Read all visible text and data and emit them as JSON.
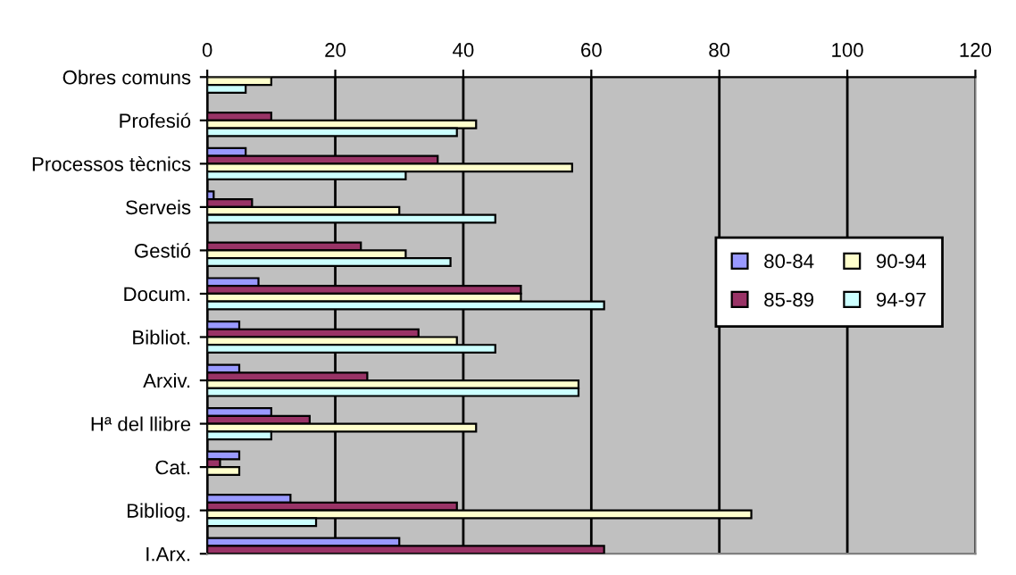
{
  "chart_data": {
    "type": "bar",
    "orientation": "horizontal",
    "categories": [
      "Obres comuns",
      "Profesió",
      "Processos tècnics",
      "Serveis",
      "Gestió",
      "Docum.",
      "Bibliot.",
      "Arxiv.",
      "Hª del llibre",
      "Cat.",
      "Bibliog.",
      "I.Arx."
    ],
    "series": [
      {
        "name": "80-84",
        "color": "#9999ff",
        "values": [
          null,
          null,
          6,
          1,
          null,
          8,
          5,
          5,
          10,
          5,
          13,
          30
        ]
      },
      {
        "name": "85-89",
        "color": "#993366",
        "values": [
          null,
          10,
          36,
          7,
          24,
          49,
          33,
          25,
          16,
          2,
          39,
          62
        ]
      },
      {
        "name": "90-94",
        "color": "#ffffcc",
        "values": [
          10,
          42,
          57,
          30,
          31,
          49,
          39,
          58,
          42,
          5,
          85,
          null
        ]
      },
      {
        "name": "94-97",
        "color": "#ccffff",
        "values": [
          6,
          39,
          31,
          45,
          38,
          62,
          45,
          58,
          10,
          null,
          17,
          null
        ]
      }
    ],
    "xlim": [
      0,
      120
    ],
    "xticks": [
      0,
      20,
      40,
      60,
      80,
      100,
      120
    ],
    "grid": "x",
    "legend": "right"
  }
}
